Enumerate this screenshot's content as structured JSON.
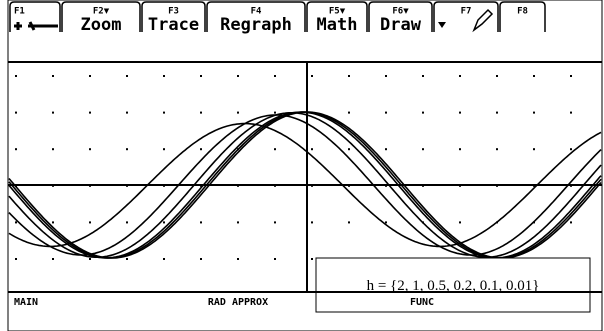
{
  "toolbar": {
    "tabs": [
      {
        "key": "F1"
      },
      {
        "key": "F2▼",
        "label": "Zoom"
      },
      {
        "key": "F3",
        "label": "Trace"
      },
      {
        "key": "F4",
        "label": "Regraph"
      },
      {
        "key": "F5▼",
        "label": "Math"
      },
      {
        "key": "F6▼",
        "label": "Draw"
      },
      {
        "key": "F7"
      },
      {
        "key": "F8"
      }
    ]
  },
  "graph": {
    "annotation": "h = {2, 1, 0.5, 0.2, 0.1, 0.01}",
    "h_values": [
      2,
      1,
      0.5,
      0.2,
      0.1,
      0.01
    ]
  },
  "status_bar": {
    "mode": "MAIN",
    "angle": "RAD APPROX",
    "graph_type": "FUNC"
  }
}
